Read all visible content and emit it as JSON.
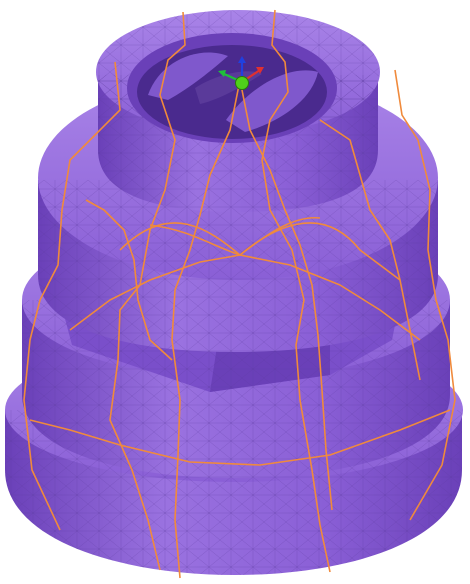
{
  "viewport": {
    "background": "#ffffff",
    "model": "mesh-model",
    "colors": {
      "mesh_fill": "#8a5fd6",
      "mesh_shadow": "#6a40b8",
      "mesh_highlight": "#a984e8",
      "mesh_edge": "#5a3a9a",
      "toolpath": "#f08a3c",
      "axis_x": "#e03030",
      "axis_y": "#1fbf3a",
      "axis_z": "#2040e0",
      "origin": "#4fd11a"
    }
  },
  "gizmo": {
    "icon": "axis-triad-icon",
    "origin_icon": "origin-sphere-icon"
  }
}
